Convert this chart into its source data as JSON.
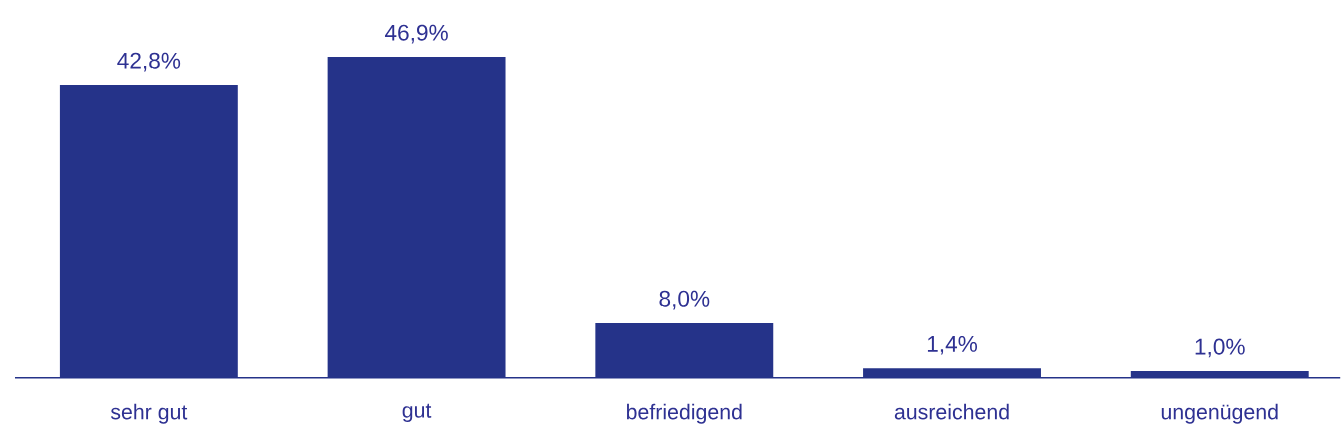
{
  "chart_data": {
    "type": "bar",
    "categories": [
      "sehr gut",
      "gut",
      "befriedigend",
      "ausreichend",
      "ungenügend"
    ],
    "values": [
      42.8,
      46.9,
      8.0,
      1.4,
      1.0
    ],
    "value_labels": [
      "42,8%",
      "46,9%",
      "8,0%",
      "1,4%",
      "1,0%"
    ],
    "color": "#253389"
  }
}
